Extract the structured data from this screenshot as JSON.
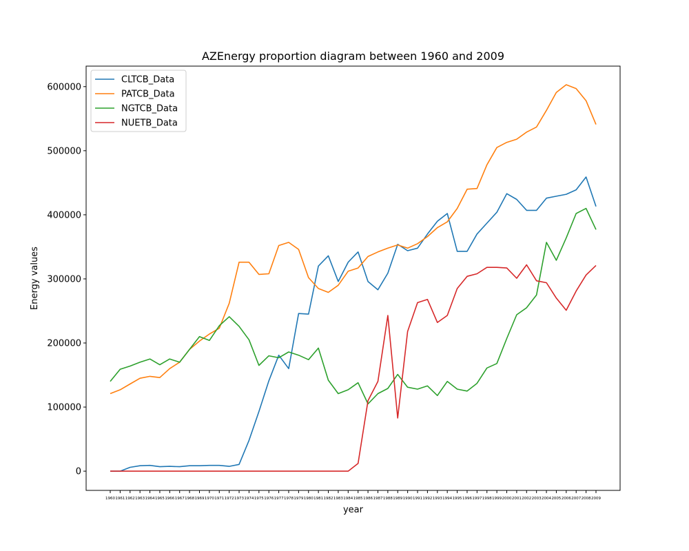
{
  "chart_data": {
    "type": "line",
    "title": "AZEnergy proportion diagram between 1960 and 2009",
    "xlabel": "year",
    "ylabel": "Energy values",
    "ylim": [
      -30000,
      632000
    ],
    "yticks": [
      "0",
      "100000",
      "200000",
      "300000",
      "400000",
      "500000",
      "600000"
    ],
    "ytick_values": [
      0,
      100000,
      200000,
      300000,
      400000,
      500000,
      600000
    ],
    "grid": false,
    "legend_position": "upper-left",
    "x": [
      "1960",
      "1961",
      "1962",
      "1963",
      "1964",
      "1965",
      "1966",
      "1967",
      "1968",
      "1969",
      "1970",
      "1971",
      "1972",
      "1973",
      "1974",
      "1975",
      "1976",
      "1977",
      "1978",
      "1979",
      "1980",
      "1981",
      "1982",
      "1983",
      "1984",
      "1985",
      "1986",
      "1987",
      "1988",
      "1989",
      "1990",
      "1991",
      "1992",
      "1993",
      "1994",
      "1995",
      "1996",
      "1997",
      "1998",
      "1999",
      "2000",
      "2001",
      "2002",
      "2003",
      "2004",
      "2005",
      "2006",
      "2007",
      "2008",
      "2009"
    ],
    "series": [
      {
        "name": "CLTCB_Data",
        "color": "#1f77b4",
        "values": [
          0,
          0,
          6000,
          8500,
          9000,
          7000,
          7500,
          7000,
          8500,
          8500,
          9000,
          9000,
          7500,
          10500,
          48000,
          93000,
          141000,
          181000,
          160000,
          246000,
          245000,
          320000,
          336000,
          296000,
          326000,
          342000,
          296000,
          283000,
          309000,
          354000,
          344000,
          348000,
          370000,
          390000,
          402000,
          343000,
          343000,
          370000,
          387000,
          404000,
          433000,
          424000,
          407000,
          407000,
          426000,
          429000,
          432000,
          439000,
          459000,
          413000
        ]
      },
      {
        "name": "PATCB_Data",
        "color": "#ff7f0e",
        "values": [
          121000,
          127000,
          136000,
          145000,
          148000,
          146000,
          160000,
          170000,
          190000,
          203000,
          214000,
          223000,
          262000,
          326000,
          326000,
          307000,
          308000,
          352000,
          357000,
          346000,
          302000,
          285000,
          279000,
          290000,
          312000,
          317000,
          335000,
          342000,
          348000,
          353000,
          348000,
          355000,
          366000,
          380000,
          389000,
          410000,
          440000,
          441000,
          478000,
          505000,
          513000,
          518000,
          529000,
          537000,
          563000,
          591000,
          603000,
          597000,
          578000,
          541000
        ]
      },
      {
        "name": "NGTCB_Data",
        "color": "#2ca02c",
        "values": [
          140000,
          159000,
          164000,
          170000,
          175000,
          166000,
          175000,
          170000,
          190000,
          210000,
          204000,
          227000,
          241000,
          226000,
          205000,
          165000,
          180000,
          177000,
          186000,
          181000,
          174000,
          192000,
          142000,
          121000,
          127000,
          138000,
          105000,
          121000,
          129000,
          151000,
          131000,
          128000,
          133000,
          118000,
          140000,
          128000,
          125000,
          137000,
          161000,
          168000,
          207000,
          244000,
          255000,
          275000,
          357000,
          329000,
          364000,
          402000,
          410000,
          377000
        ]
      },
      {
        "name": "NUETB_Data",
        "color": "#d62728",
        "values": [
          0,
          0,
          0,
          0,
          0,
          0,
          0,
          0,
          0,
          0,
          0,
          0,
          0,
          0,
          0,
          0,
          0,
          0,
          0,
          0,
          0,
          0,
          0,
          0,
          0,
          12000,
          110000,
          140000,
          243000,
          83000,
          218000,
          263000,
          268000,
          232000,
          243000,
          285000,
          304000,
          308000,
          318000,
          318000,
          317000,
          301000,
          322000,
          297000,
          294000,
          270000,
          251000,
          281000,
          306000,
          321000
        ]
      }
    ]
  }
}
